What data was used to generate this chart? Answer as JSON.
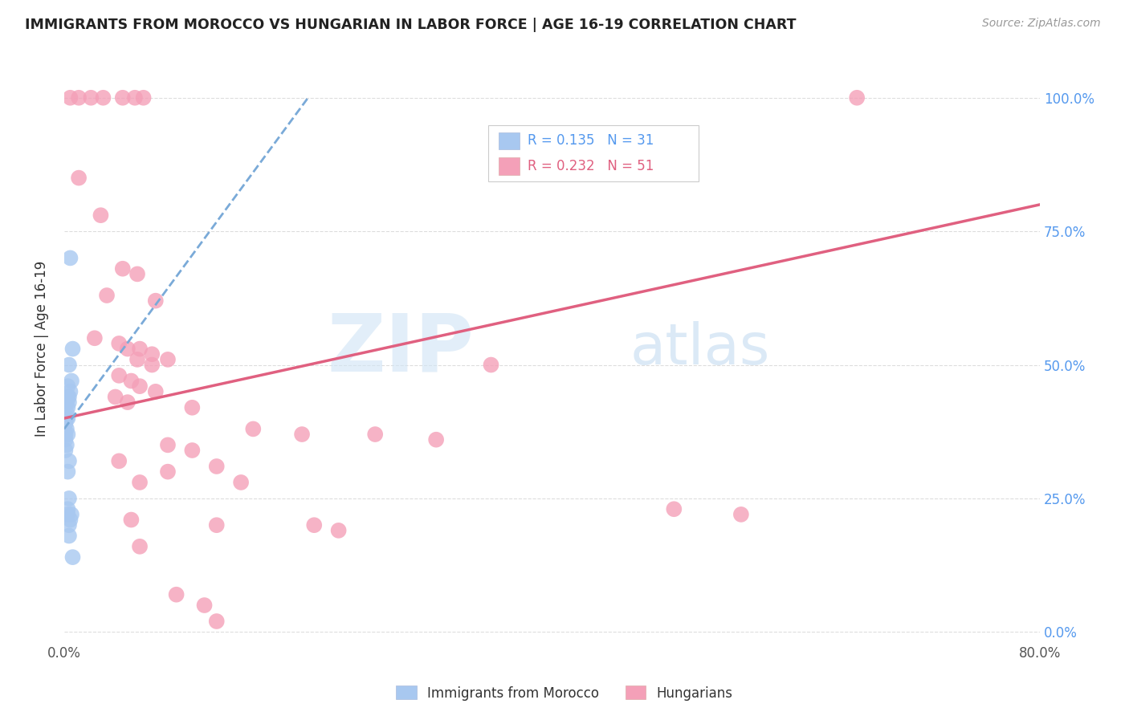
{
  "title": "IMMIGRANTS FROM MOROCCO VS HUNGARIAN IN LABOR FORCE | AGE 16-19 CORRELATION CHART",
  "source": "Source: ZipAtlas.com",
  "ylabel": "In Labor Force | Age 16-19",
  "yticks": [
    "0.0%",
    "25.0%",
    "50.0%",
    "75.0%",
    "100.0%"
  ],
  "ytick_vals": [
    0.0,
    0.25,
    0.5,
    0.75,
    1.0
  ],
  "xlim": [
    0.0,
    0.8
  ],
  "ylim": [
    -0.02,
    1.08
  ],
  "r_morocco": 0.135,
  "n_morocco": 31,
  "r_hungarian": 0.232,
  "n_hungarian": 51,
  "legend_color_morocco": "#a8c8f0",
  "legend_color_hungarian": "#f4a0b8",
  "watermark_zip": "ZIP",
  "watermark_atlas": "atlas",
  "morocco_color": "#a8c8f0",
  "hungarian_color": "#f4a0b8",
  "morocco_line_color": "#7aaad8",
  "hungarian_line_color": "#e06080",
  "background_color": "#ffffff",
  "grid_color": "#dddddd",
  "morocco_scatter": [
    [
      0.005,
      0.7
    ],
    [
      0.007,
      0.53
    ],
    [
      0.004,
      0.5
    ],
    [
      0.006,
      0.47
    ],
    [
      0.003,
      0.46
    ],
    [
      0.005,
      0.45
    ],
    [
      0.004,
      0.44
    ],
    [
      0.003,
      0.44
    ],
    [
      0.002,
      0.43
    ],
    [
      0.004,
      0.43
    ],
    [
      0.003,
      0.42
    ],
    [
      0.002,
      0.41
    ],
    [
      0.002,
      0.4
    ],
    [
      0.003,
      0.4
    ],
    [
      0.001,
      0.39
    ],
    [
      0.002,
      0.38
    ],
    [
      0.001,
      0.37
    ],
    [
      0.003,
      0.37
    ],
    [
      0.001,
      0.36
    ],
    [
      0.002,
      0.35
    ],
    [
      0.001,
      0.34
    ],
    [
      0.004,
      0.32
    ],
    [
      0.003,
      0.3
    ],
    [
      0.004,
      0.25
    ],
    [
      0.003,
      0.23
    ],
    [
      0.006,
      0.22
    ],
    [
      0.003,
      0.22
    ],
    [
      0.005,
      0.21
    ],
    [
      0.004,
      0.2
    ],
    [
      0.004,
      0.18
    ],
    [
      0.007,
      0.14
    ]
  ],
  "hungarian_scatter": [
    [
      0.005,
      1.0
    ],
    [
      0.012,
      1.0
    ],
    [
      0.022,
      1.0
    ],
    [
      0.032,
      1.0
    ],
    [
      0.048,
      1.0
    ],
    [
      0.058,
      1.0
    ],
    [
      0.065,
      1.0
    ],
    [
      0.65,
      1.0
    ],
    [
      0.012,
      0.85
    ],
    [
      0.03,
      0.78
    ],
    [
      0.048,
      0.68
    ],
    [
      0.06,
      0.67
    ],
    [
      0.035,
      0.63
    ],
    [
      0.075,
      0.62
    ],
    [
      0.025,
      0.55
    ],
    [
      0.045,
      0.54
    ],
    [
      0.052,
      0.53
    ],
    [
      0.062,
      0.53
    ],
    [
      0.072,
      0.52
    ],
    [
      0.06,
      0.51
    ],
    [
      0.085,
      0.51
    ],
    [
      0.072,
      0.5
    ],
    [
      0.35,
      0.5
    ],
    [
      0.045,
      0.48
    ],
    [
      0.055,
      0.47
    ],
    [
      0.062,
      0.46
    ],
    [
      0.075,
      0.45
    ],
    [
      0.042,
      0.44
    ],
    [
      0.052,
      0.43
    ],
    [
      0.105,
      0.42
    ],
    [
      0.155,
      0.38
    ],
    [
      0.195,
      0.37
    ],
    [
      0.255,
      0.37
    ],
    [
      0.305,
      0.36
    ],
    [
      0.085,
      0.35
    ],
    [
      0.105,
      0.34
    ],
    [
      0.045,
      0.32
    ],
    [
      0.125,
      0.31
    ],
    [
      0.085,
      0.3
    ],
    [
      0.062,
      0.28
    ],
    [
      0.145,
      0.28
    ],
    [
      0.5,
      0.23
    ],
    [
      0.555,
      0.22
    ],
    [
      0.055,
      0.21
    ],
    [
      0.125,
      0.2
    ],
    [
      0.205,
      0.2
    ],
    [
      0.225,
      0.19
    ],
    [
      0.062,
      0.16
    ],
    [
      0.092,
      0.07
    ],
    [
      0.125,
      0.02
    ],
    [
      0.115,
      0.05
    ]
  ],
  "hungary_line_x0": 0.0,
  "hungary_line_y0": 0.4,
  "hungary_line_x1": 0.8,
  "hungary_line_y1": 0.8,
  "morocco_line_x0": 0.0,
  "morocco_line_y0": 0.38,
  "morocco_line_x1": 0.2,
  "morocco_line_y1": 1.0
}
